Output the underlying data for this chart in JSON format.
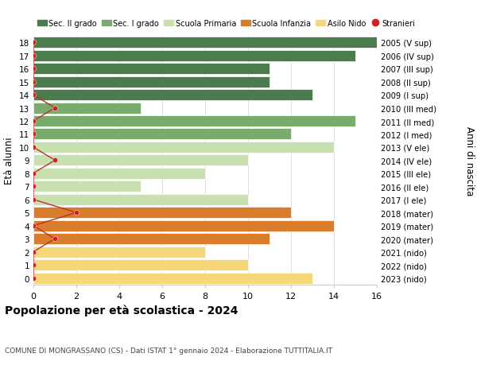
{
  "ages": [
    18,
    17,
    16,
    15,
    14,
    13,
    12,
    11,
    10,
    9,
    8,
    7,
    6,
    5,
    4,
    3,
    2,
    1,
    0
  ],
  "right_labels": [
    "2005 (V sup)",
    "2006 (IV sup)",
    "2007 (III sup)",
    "2008 (II sup)",
    "2009 (I sup)",
    "2010 (III med)",
    "2011 (II med)",
    "2012 (I med)",
    "2013 (V ele)",
    "2014 (IV ele)",
    "2015 (III ele)",
    "2016 (II ele)",
    "2017 (I ele)",
    "2018 (mater)",
    "2019 (mater)",
    "2020 (mater)",
    "2021 (nido)",
    "2022 (nido)",
    "2023 (nido)"
  ],
  "bar_values": [
    16,
    15,
    11,
    11,
    13,
    5,
    15,
    12,
    14,
    10,
    8,
    5,
    10,
    12,
    14,
    11,
    8,
    10,
    13
  ],
  "bar_colors": [
    "#4a7c4e",
    "#4a7c4e",
    "#4a7c4e",
    "#4a7c4e",
    "#4a7c4e",
    "#7aab6e",
    "#7aab6e",
    "#7aab6e",
    "#c8e0b0",
    "#c8e0b0",
    "#c8e0b0",
    "#c8e0b0",
    "#c8e0b0",
    "#d97c2b",
    "#d97c2b",
    "#d97c2b",
    "#f5d978",
    "#f5d978",
    "#f5d978"
  ],
  "stranieri_ages": [
    18,
    17,
    16,
    15,
    14,
    13,
    12,
    11,
    10,
    9,
    8,
    7,
    6,
    5,
    4,
    3,
    2,
    1,
    0
  ],
  "stranieri_values": [
    0,
    0,
    0,
    0,
    0,
    1,
    0,
    0,
    0,
    1,
    0,
    0,
    0,
    2,
    0,
    1,
    0,
    0,
    0
  ],
  "legend_labels": [
    "Sec. II grado",
    "Sec. I grado",
    "Scuola Primaria",
    "Scuola Infanzia",
    "Asilo Nido",
    "Stranieri"
  ],
  "legend_colors": [
    "#4a7c4e",
    "#7aab6e",
    "#c8e0b0",
    "#d97c2b",
    "#f5d978",
    "#cc2222"
  ],
  "ylabel": "Età alunni",
  "right_ylabel": "Anni di nascita",
  "title": "Popolazione per età scolastica - 2024",
  "subtitle": "COMUNE DI MONGRASSANO (CS) - Dati ISTAT 1° gennaio 2024 - Elaborazione TUTTITALIA.IT",
  "xlim": [
    0,
    16
  ],
  "bar_height": 0.85,
  "background_color": "#ffffff",
  "grid_color": "#dddddd",
  "stranieri_line_color": "#bb3322",
  "stranieri_dot_color": "#cc2222"
}
